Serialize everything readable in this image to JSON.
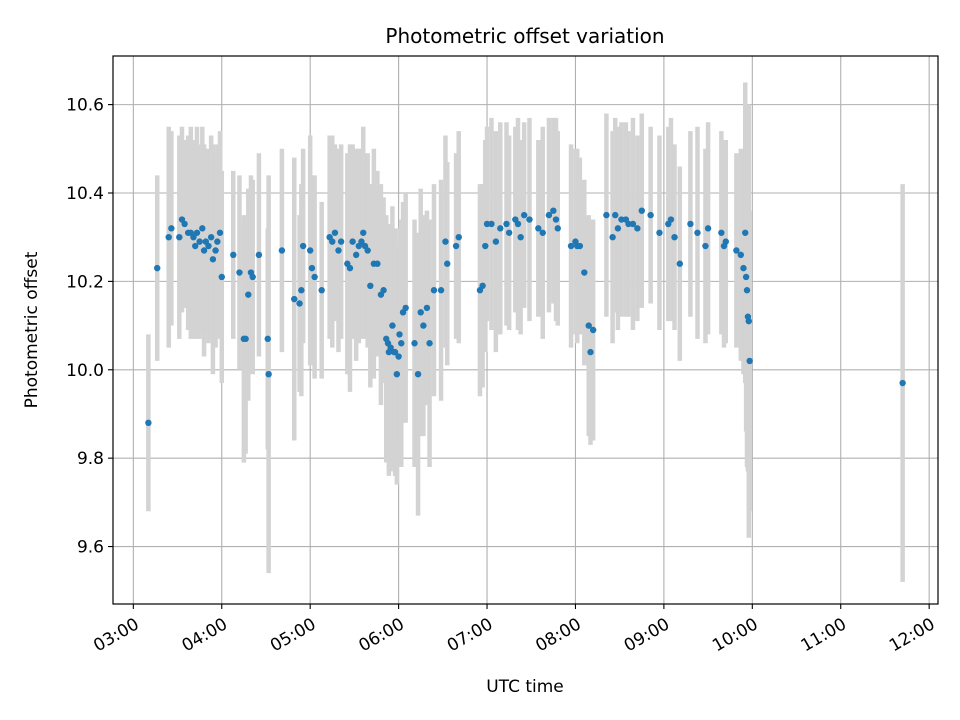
{
  "chart_data": {
    "type": "scatter",
    "title": "Photometric offset variation",
    "xlabel": "UTC time",
    "ylabel": "Photometric offset",
    "x_unit": "hours (UTC)",
    "xlim": [
      2.77,
      12.1
    ],
    "ylim": [
      9.47,
      10.71
    ],
    "xticks": [
      3,
      4,
      5,
      6,
      7,
      8,
      9,
      10,
      11,
      12
    ],
    "xtick_labels": [
      "03:00",
      "04:00",
      "05:00",
      "06:00",
      "07:00",
      "08:00",
      "09:00",
      "10:00",
      "11:00",
      "12:00"
    ],
    "yticks": [
      9.6,
      9.8,
      10.0,
      10.2,
      10.4,
      10.6
    ],
    "ytick_labels": [
      "9.6",
      "9.8",
      "10.0",
      "10.2",
      "10.4",
      "10.6"
    ],
    "grid": true,
    "marker_color": "#1f77b4",
    "errorbar_color": "#d3d3d3",
    "series": [
      {
        "points": [
          [
            3.17,
            9.88,
            0.2
          ],
          [
            3.27,
            10.23,
            0.21
          ],
          [
            3.4,
            10.3,
            0.25
          ],
          [
            3.43,
            10.32,
            0.22
          ],
          [
            3.52,
            10.3,
            0.23
          ],
          [
            3.55,
            10.34,
            0.21
          ],
          [
            3.58,
            10.33,
            0.19
          ],
          [
            3.62,
            10.31,
            0.22
          ],
          [
            3.65,
            10.31,
            0.24
          ],
          [
            3.68,
            10.3,
            0.22
          ],
          [
            3.7,
            10.28,
            0.21
          ],
          [
            3.72,
            10.31,
            0.24
          ],
          [
            3.75,
            10.29,
            0.22
          ],
          [
            3.78,
            10.32,
            0.23
          ],
          [
            3.8,
            10.27,
            0.24
          ],
          [
            3.82,
            10.29,
            0.21
          ],
          [
            3.85,
            10.28,
            0.22
          ],
          [
            3.88,
            10.3,
            0.23
          ],
          [
            3.9,
            10.25,
            0.26
          ],
          [
            3.93,
            10.27,
            0.22
          ],
          [
            3.95,
            10.29,
            0.22
          ],
          [
            3.98,
            10.31,
            0.23
          ],
          [
            4.0,
            10.21,
            0.24
          ],
          [
            4.13,
            10.26,
            0.19
          ],
          [
            4.2,
            10.22,
            0.22
          ],
          [
            4.25,
            10.07,
            0.28
          ],
          [
            4.27,
            10.07,
            0.26
          ],
          [
            4.3,
            10.17,
            0.24
          ],
          [
            4.33,
            10.22,
            0.22
          ],
          [
            4.35,
            10.21,
            0.22
          ],
          [
            4.42,
            10.26,
            0.23
          ],
          [
            4.52,
            10.07,
            0.25
          ],
          [
            4.53,
            9.99,
            0.45
          ],
          [
            4.68,
            10.27,
            0.23
          ],
          [
            4.82,
            10.16,
            0.32
          ],
          [
            4.88,
            10.15,
            0.2
          ],
          [
            4.9,
            10.18,
            0.24
          ],
          [
            4.92,
            10.28,
            0.22
          ],
          [
            5.0,
            10.27,
            0.26
          ],
          [
            5.02,
            10.23,
            0.21
          ],
          [
            5.05,
            10.21,
            0.23
          ],
          [
            5.13,
            10.18,
            0.2
          ],
          [
            5.22,
            10.3,
            0.23
          ],
          [
            5.25,
            10.29,
            0.24
          ],
          [
            5.28,
            10.31,
            0.2
          ],
          [
            5.32,
            10.27,
            0.23
          ],
          [
            5.35,
            10.29,
            0.22
          ],
          [
            5.42,
            10.24,
            0.25
          ],
          [
            5.45,
            10.23,
            0.28
          ],
          [
            5.48,
            10.29,
            0.22
          ],
          [
            5.52,
            10.26,
            0.24
          ],
          [
            5.55,
            10.28,
            0.22
          ],
          [
            5.58,
            10.29,
            0.21
          ],
          [
            5.6,
            10.31,
            0.24
          ],
          [
            5.62,
            10.28,
            0.2
          ],
          [
            5.65,
            10.27,
            0.22
          ],
          [
            5.68,
            10.19,
            0.23
          ],
          [
            5.72,
            10.24,
            0.26
          ],
          [
            5.76,
            10.24,
            0.21
          ],
          [
            5.8,
            10.17,
            0.25
          ],
          [
            5.83,
            10.18,
            0.21
          ],
          [
            5.86,
            10.07,
            0.28
          ],
          [
            5.88,
            10.06,
            0.26
          ],
          [
            5.89,
            10.04,
            0.28
          ],
          [
            5.91,
            10.05,
            0.28
          ],
          [
            5.93,
            10.1,
            0.27
          ],
          [
            5.95,
            10.04,
            0.26
          ],
          [
            5.96,
            10.04,
            0.28
          ],
          [
            5.98,
            9.99,
            0.25
          ],
          [
            6.0,
            10.03,
            0.25
          ],
          [
            6.01,
            10.08,
            0.24
          ],
          [
            6.03,
            10.06,
            0.28
          ],
          [
            6.05,
            10.13,
            0.25
          ],
          [
            6.08,
            10.14,
            0.26
          ],
          [
            6.18,
            10.06,
            0.28
          ],
          [
            6.22,
            9.99,
            0.32
          ],
          [
            6.25,
            10.13,
            0.28
          ],
          [
            6.28,
            10.1,
            0.25
          ],
          [
            6.32,
            10.14,
            0.22
          ],
          [
            6.35,
            10.06,
            0.28
          ],
          [
            6.4,
            10.18,
            0.24
          ],
          [
            6.48,
            10.18,
            0.25
          ],
          [
            6.53,
            10.29,
            0.24
          ],
          [
            6.55,
            10.24,
            0.23
          ],
          [
            6.65,
            10.28,
            0.21
          ],
          [
            6.68,
            10.3,
            0.24
          ],
          [
            6.92,
            10.18,
            0.24
          ],
          [
            6.95,
            10.19,
            0.23
          ],
          [
            6.98,
            10.28,
            0.24
          ],
          [
            7.0,
            10.33,
            0.22
          ],
          [
            7.05,
            10.33,
            0.24
          ],
          [
            7.1,
            10.29,
            0.25
          ],
          [
            7.15,
            10.32,
            0.24
          ],
          [
            7.22,
            10.33,
            0.23
          ],
          [
            7.25,
            10.31,
            0.22
          ],
          [
            7.32,
            10.34,
            0.21
          ],
          [
            7.35,
            10.33,
            0.24
          ],
          [
            7.38,
            10.3,
            0.22
          ],
          [
            7.42,
            10.35,
            0.21
          ],
          [
            7.48,
            10.34,
            0.23
          ],
          [
            7.58,
            10.32,
            0.2
          ],
          [
            7.63,
            10.31,
            0.24
          ],
          [
            7.7,
            10.35,
            0.22
          ],
          [
            7.75,
            10.36,
            0.21
          ],
          [
            7.78,
            10.34,
            0.23
          ],
          [
            7.8,
            10.32,
            0.22
          ],
          [
            7.95,
            10.28,
            0.23
          ],
          [
            8.0,
            10.29,
            0.21
          ],
          [
            8.02,
            10.28,
            0.22
          ],
          [
            8.05,
            10.28,
            0.2
          ],
          [
            8.1,
            10.22,
            0.21
          ],
          [
            8.15,
            10.1,
            0.25
          ],
          [
            8.17,
            10.04,
            0.21
          ],
          [
            8.2,
            10.09,
            0.25
          ],
          [
            8.35,
            10.35,
            0.23
          ],
          [
            8.42,
            10.3,
            0.24
          ],
          [
            8.45,
            10.35,
            0.22
          ],
          [
            8.48,
            10.32,
            0.23
          ],
          [
            8.52,
            10.34,
            0.22
          ],
          [
            8.57,
            10.34,
            0.22
          ],
          [
            8.6,
            10.33,
            0.21
          ],
          [
            8.65,
            10.33,
            0.24
          ],
          [
            8.7,
            10.32,
            0.21
          ],
          [
            8.75,
            10.36,
            0.22
          ],
          [
            8.85,
            10.35,
            0.2
          ],
          [
            8.95,
            10.31,
            0.22
          ],
          [
            9.05,
            10.33,
            0.22
          ],
          [
            9.08,
            10.34,
            0.23
          ],
          [
            9.12,
            10.3,
            0.21
          ],
          [
            9.18,
            10.24,
            0.22
          ],
          [
            9.3,
            10.33,
            0.21
          ],
          [
            9.38,
            10.31,
            0.24
          ],
          [
            9.47,
            10.28,
            0.22
          ],
          [
            9.5,
            10.32,
            0.24
          ],
          [
            9.65,
            10.31,
            0.23
          ],
          [
            9.68,
            10.28,
            0.23
          ],
          [
            9.7,
            10.29,
            0.23
          ],
          [
            9.82,
            10.27,
            0.22
          ],
          [
            9.87,
            10.26,
            0.24
          ],
          [
            9.9,
            10.23,
            0.24
          ],
          [
            9.92,
            10.31,
            0.34
          ],
          [
            9.93,
            10.21,
            0.35
          ],
          [
            9.94,
            10.18,
            0.4
          ],
          [
            9.95,
            10.12,
            0.35
          ],
          [
            9.96,
            10.11,
            0.49
          ],
          [
            9.97,
            10.02,
            0.34
          ],
          [
            11.7,
            9.97,
            0.45
          ]
        ]
      }
    ]
  }
}
